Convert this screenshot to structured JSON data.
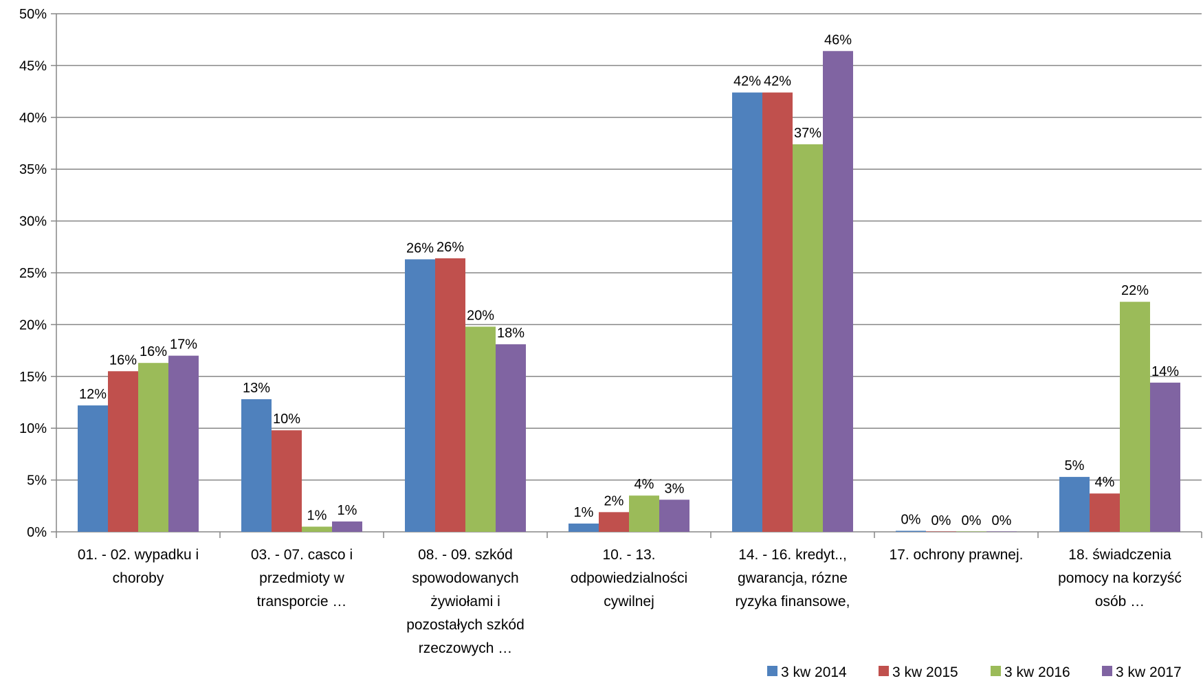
{
  "chart_data": {
    "type": "bar",
    "title": "",
    "xlabel": "",
    "ylabel": "",
    "ylim": [
      0,
      50
    ],
    "yticks": [
      "0%",
      "5%",
      "10%",
      "15%",
      "20%",
      "25%",
      "30%",
      "35%",
      "40%",
      "45%",
      "50%"
    ],
    "grid": true,
    "legend_position": "bottom-right",
    "categories": [
      [
        "01. - 02. wypadku i",
        "choroby"
      ],
      [
        "03. - 07. casco i",
        "przedmioty w",
        "transporcie …"
      ],
      [
        "08. - 09. szkód",
        "spowodowanych",
        "żywiołami i",
        "pozostałych szkód",
        "rzeczowych …"
      ],
      [
        "10. - 13.",
        "odpowiedzialności",
        "cywilnej"
      ],
      [
        "14. - 16. kredyt..,",
        "gwarancja,  rózne",
        "ryzyka finansowe,"
      ],
      [
        "17. ochrony prawnej."
      ],
      [
        "18. świadczenia",
        "pomocy na korzyść",
        "osób …"
      ]
    ],
    "series": [
      {
        "name": "3 kw 2014",
        "color": "#4F81BD",
        "values": [
          12.2,
          12.8,
          26.3,
          0.8,
          42.4,
          0.1,
          5.3
        ],
        "labels": [
          "12%",
          "13%",
          "26%",
          "1%",
          "42%",
          "0%",
          "5%"
        ]
      },
      {
        "name": "3 kw 2015",
        "color": "#C0504D",
        "values": [
          15.5,
          9.8,
          26.4,
          1.9,
          42.4,
          0.0,
          3.7
        ],
        "labels": [
          "16%",
          "10%",
          "26%",
          "2%",
          "42%",
          "0%",
          "4%"
        ]
      },
      {
        "name": "3 kw 2016",
        "color": "#9BBB59",
        "values": [
          16.3,
          0.5,
          19.8,
          3.5,
          37.4,
          0.0,
          22.2
        ],
        "labels": [
          "16%",
          "1%",
          "20%",
          "4%",
          "37%",
          "0%",
          "22%"
        ]
      },
      {
        "name": "3 kw 2017",
        "color": "#8064A2",
        "values": [
          17.0,
          1.0,
          18.1,
          3.1,
          46.4,
          0.0,
          14.4
        ],
        "labels": [
          "17%",
          "1%",
          "18%",
          "3%",
          "46%",
          "0%",
          "14%"
        ]
      }
    ]
  }
}
